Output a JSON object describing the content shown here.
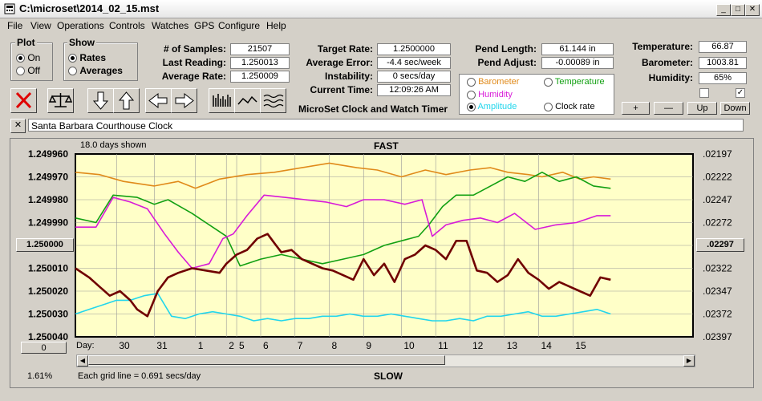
{
  "window": {
    "title": "C:\\microset\\2014_02_15.mst"
  },
  "menu": [
    "File",
    "View",
    "Operations",
    "Controls",
    "Watches",
    "GPS",
    "Configure",
    "Help"
  ],
  "plot_group": {
    "title": "Plot",
    "options": [
      "On",
      "Off"
    ],
    "selected": "On"
  },
  "show_group": {
    "title": "Show",
    "options": [
      "Rates",
      "Averages"
    ],
    "selected": "Rates"
  },
  "stats": {
    "samples_label": "# of Samples:",
    "samples": "21507",
    "last_label": "Last Reading:",
    "last": "1.250013",
    "avg_label": "Average Rate:",
    "avg": "1.250009"
  },
  "rates": {
    "target_label": "Target Rate:",
    "target": "1.2500000",
    "avgerr_label": "Average Error:",
    "avgerr": "-4.4 sec/week",
    "instab_label": "Instability:",
    "instab": "0 secs/day",
    "time_label": "Current Time:",
    "time": "12:09:26 AM"
  },
  "app_caption": "MicroSet Clock and Watch Timer",
  "pend": {
    "length_label": "Pend Length:",
    "length": "61.144 in",
    "adjust_label": "Pend Adjust:",
    "adjust": "-0.00089 in"
  },
  "env": {
    "temp_label": "Temperature:",
    "temp": "66.87",
    "baro_label": "Barometer:",
    "baro": "1003.81",
    "hum_label": "Humidity:",
    "hum": "65%"
  },
  "sensor_options": {
    "barometer": "Barometer",
    "temperature": "Temperature",
    "humidity": "Humidity",
    "amplitude": "Amplitude",
    "clockrate": "Clock rate",
    "selected": "Amplitude"
  },
  "adjust_buttons": {
    "plus": "+",
    "minus": "—",
    "up": "Up",
    "down": "Down"
  },
  "watch_name": "Santa Barbara Courthouse Clock",
  "colors": {
    "barometer": "#e08a1a",
    "temperature": "#12a012",
    "humidity": "#d81ad8",
    "amplitude": "#22d6ec",
    "rate": "#700000",
    "chart_bg": "#ffffc8"
  },
  "chart_data": {
    "type": "line",
    "title": "FAST",
    "bottom_label": "SLOW",
    "days_shown": "18.0 days shown",
    "grid_note": "Each grid line = 0.691 secs/day",
    "left_ticks": [
      "1.249960",
      "1.249970",
      "1.249980",
      "1.249990",
      "1.250000",
      "1.250010",
      "1.250020",
      "1.250030",
      "1.250040"
    ],
    "right_ticks": [
      ".02197",
      ".02222",
      ".02247",
      ".02272",
      ".02297",
      ".02322",
      ".02347",
      ".02372",
      ".02397"
    ],
    "left_center_button": "1.250000",
    "right_center_button": ".02297",
    "left_bottom_button": "0",
    "zoom_percent": "1.61%",
    "ylim": [
      1.24996,
      1.25004
    ],
    "day_axis_label": "Day:",
    "days": [
      "30",
      "31",
      "1",
      "2",
      "5",
      "6",
      "7",
      "8",
      "9",
      "10",
      "11",
      "12",
      "13",
      "14",
      "15"
    ],
    "day_positions": [
      -12.4,
      -11.3,
      -10.1,
      -9.2,
      -8.9,
      -8.2,
      -7.2,
      -6.2,
      -5.2,
      -4.1,
      -3.1,
      -2.1,
      -1.1,
      -0.1,
      0.9
    ],
    "xlim": [
      -13.6,
      4.4
    ],
    "series": [
      {
        "name": "Rates",
        "x": [
          -13.6,
          -13.2,
          -12.9,
          -12.6,
          -12.3,
          -12.0,
          -11.8,
          -11.5,
          -11.2,
          -10.9,
          -10.6,
          -10.2,
          -9.8,
          -9.4,
          -9.2,
          -8.9,
          -8.6,
          -8.3,
          -8.0,
          -7.8,
          -7.6,
          -7.3,
          -7.0,
          -6.7,
          -6.4,
          -6.1,
          -5.8,
          -5.5,
          -5.2,
          -4.9,
          -4.6,
          -4.3,
          -4.0,
          -3.7,
          -3.4,
          -3.1,
          -2.8,
          -2.5,
          -2.2,
          -1.9,
          -1.6,
          -1.3,
          -1.0,
          -0.7,
          -0.4,
          -0.1,
          0.2,
          0.5,
          0.8,
          1.1,
          1.4,
          1.7,
          2.0
        ],
        "values": [
          1.25001,
          1.250014,
          1.250018,
          1.250022,
          1.25002,
          1.250024,
          1.250028,
          1.250031,
          1.25002,
          1.250014,
          1.250012,
          1.25001,
          1.250011,
          1.250012,
          1.250008,
          1.250004,
          1.250002,
          1.249997,
          1.249995,
          1.249999,
          1.250003,
          1.250002,
          1.250006,
          1.250008,
          1.25001,
          1.250011,
          1.250013,
          1.250015,
          1.250006,
          1.250013,
          1.250008,
          1.250016,
          1.250006,
          1.250004,
          1.25,
          1.250002,
          1.250006,
          1.249998,
          1.249998,
          1.250011,
          1.250012,
          1.250016,
          1.250013,
          1.250006,
          1.250012,
          1.250015,
          1.250019,
          1.250016,
          1.250018,
          1.25002,
          1.250022,
          1.250014,
          1.250015
        ]
      },
      {
        "name": "Barometer",
        "x": [
          -13.6,
          -12.9,
          -12.2,
          -11.3,
          -10.6,
          -10.1,
          -9.4,
          -8.6,
          -7.8,
          -7.0,
          -6.2,
          -5.4,
          -4.8,
          -4.1,
          -3.4,
          -2.8,
          -2.1,
          -1.5,
          -1.0,
          -0.4,
          0.0,
          0.6,
          1.1,
          1.5,
          2.0
        ],
        "values": [
          1.249968,
          1.249969,
          1.249972,
          1.249974,
          1.249972,
          1.249975,
          1.249971,
          1.249969,
          1.249968,
          1.249966,
          1.249964,
          1.249966,
          1.249967,
          1.24997,
          1.249967,
          1.249969,
          1.249967,
          1.249966,
          1.249968,
          1.249969,
          1.24997,
          1.249968,
          1.249971,
          1.24997,
          1.249971
        ]
      },
      {
        "name": "Temperature",
        "x": [
          -13.6,
          -13.0,
          -12.5,
          -11.8,
          -11.3,
          -10.9,
          -10.2,
          -9.6,
          -9.2,
          -8.8,
          -8.2,
          -7.6,
          -7.0,
          -6.4,
          -5.8,
          -5.2,
          -4.6,
          -4.1,
          -3.6,
          -3.3,
          -2.9,
          -2.5,
          -2.0,
          -1.5,
          -1.0,
          -0.5,
          0.0,
          0.5,
          1.0,
          1.5,
          2.0
        ],
        "values": [
          1.249988,
          1.24999,
          1.249978,
          1.249979,
          1.249982,
          1.24998,
          1.249986,
          1.249992,
          1.249996,
          1.250009,
          1.250006,
          1.250004,
          1.250006,
          1.250008,
          1.250006,
          1.250004,
          1.25,
          1.249998,
          1.249996,
          1.249991,
          1.249983,
          1.249978,
          1.249978,
          1.249974,
          1.24997,
          1.249972,
          1.249968,
          1.249972,
          1.24997,
          1.249974,
          1.249975
        ]
      },
      {
        "name": "Humidity",
        "x": [
          -13.6,
          -13.0,
          -12.5,
          -12.0,
          -11.5,
          -11.0,
          -10.6,
          -10.2,
          -9.7,
          -9.3,
          -9.0,
          -8.6,
          -8.1,
          -7.5,
          -6.9,
          -6.3,
          -5.7,
          -5.2,
          -4.6,
          -4.0,
          -3.5,
          -3.2,
          -2.8,
          -2.3,
          -1.8,
          -1.3,
          -0.8,
          -0.2,
          0.4,
          1.0,
          1.6,
          2.0
        ],
        "values": [
          1.249992,
          1.249992,
          1.249979,
          1.249981,
          1.249984,
          1.249995,
          1.250003,
          1.25001,
          1.250008,
          1.249997,
          1.249995,
          1.249987,
          1.249978,
          1.249979,
          1.24998,
          1.249981,
          1.249983,
          1.24998,
          1.24998,
          1.249982,
          1.24998,
          1.249996,
          1.249991,
          1.249989,
          1.249988,
          1.24999,
          1.249986,
          1.249993,
          1.249991,
          1.24999,
          1.249987,
          1.249987
        ]
      },
      {
        "name": "Amplitude",
        "x": [
          -13.6,
          -13.2,
          -12.8,
          -12.4,
          -12.0,
          -11.6,
          -11.2,
          -10.8,
          -10.4,
          -10.0,
          -9.6,
          -9.2,
          -8.8,
          -8.4,
          -8.0,
          -7.6,
          -7.2,
          -6.8,
          -6.4,
          -6.0,
          -5.6,
          -5.2,
          -4.8,
          -4.4,
          -4.0,
          -3.6,
          -3.2,
          -2.8,
          -2.4,
          -2.0,
          -1.6,
          -1.2,
          -0.8,
          -0.4,
          0.0,
          0.4,
          0.8,
          1.2,
          1.6,
          2.0
        ],
        "values": [
          1.25003,
          1.250028,
          1.250026,
          1.250024,
          1.250024,
          1.250022,
          1.250021,
          1.250031,
          1.250032,
          1.25003,
          1.250029,
          1.25003,
          1.250031,
          1.250033,
          1.250032,
          1.250033,
          1.250032,
          1.250032,
          1.250031,
          1.250031,
          1.25003,
          1.250031,
          1.250031,
          1.25003,
          1.250031,
          1.250032,
          1.250033,
          1.250033,
          1.250032,
          1.250033,
          1.250031,
          1.250031,
          1.25003,
          1.250029,
          1.250031,
          1.250031,
          1.25003,
          1.250029,
          1.250028,
          1.25003
        ]
      }
    ]
  }
}
